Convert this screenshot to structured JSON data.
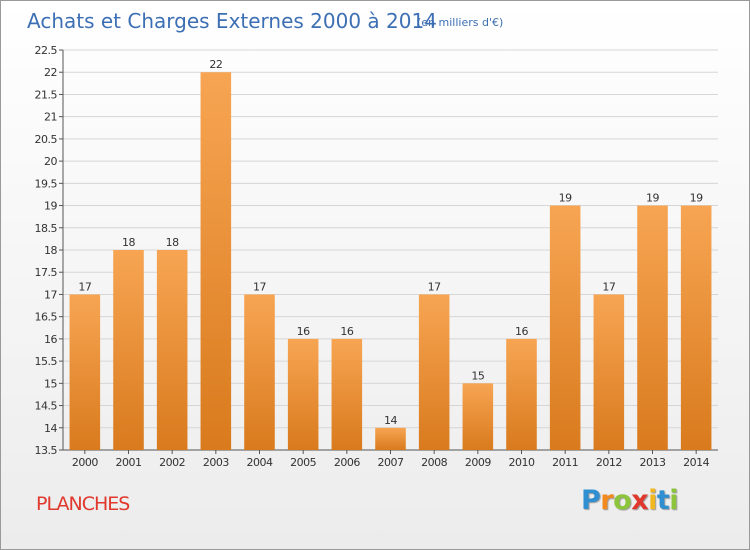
{
  "chart_data": {
    "type": "bar",
    "title": "Achats et Charges Externes 2000 à 2014",
    "subtitle": "(en milliers d'€)",
    "categories": [
      "2000",
      "2001",
      "2002",
      "2003",
      "2004",
      "2005",
      "2006",
      "2007",
      "2008",
      "2009",
      "2010",
      "2011",
      "2012",
      "2013",
      "2014"
    ],
    "values": [
      17,
      18,
      18,
      22,
      17,
      16,
      16,
      14,
      17,
      15,
      16,
      19,
      17,
      19,
      19
    ],
    "ylim": [
      13.5,
      22.5
    ],
    "yticks": [
      13.5,
      14,
      14.5,
      15,
      15.5,
      16,
      16.5,
      17,
      17.5,
      18,
      18.5,
      19,
      19.5,
      20,
      20.5,
      21,
      21.5,
      22,
      22.5
    ],
    "grid": true,
    "xlabel": "",
    "ylabel": ""
  },
  "town": "PLANCHES",
  "brand": {
    "letters": [
      "P",
      "r",
      "o",
      "x",
      "i",
      "t",
      "i"
    ],
    "colors": [
      "#2f8fd0",
      "#f28a1e",
      "#8cc43c",
      "#e0382c",
      "#f2b61e",
      "#2f8fd0",
      "#8cc43c"
    ]
  },
  "colors": {
    "bar_light": "#f7a553",
    "bar_dark": "#d97a1d",
    "title": "#3d6fb4",
    "grid": "#d6d6d6",
    "town": "#e0382c"
  }
}
